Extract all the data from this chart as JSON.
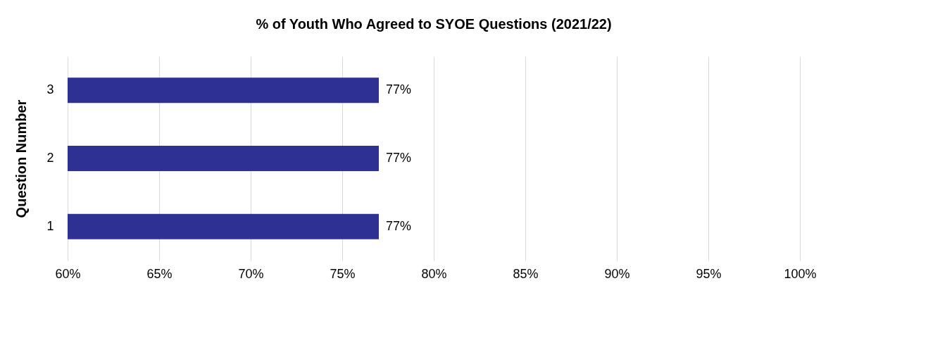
{
  "chart_data": {
    "type": "bar",
    "orientation": "horizontal",
    "title": "% of Youth Who Agreed to SYOE Questions (2021/22)",
    "ylabel": "Question Number",
    "categories": [
      "3",
      "2",
      "1"
    ],
    "values": [
      77,
      77,
      77
    ],
    "color": "#2e3192",
    "value_labels": [
      "77%",
      "77%",
      "77%"
    ],
    "xlim": [
      60,
      100
    ],
    "xticks": [
      {
        "value": 60,
        "label": "60%"
      },
      {
        "value": 65,
        "label": "65%"
      },
      {
        "value": 70,
        "label": "70%"
      },
      {
        "value": 75,
        "label": "75%"
      },
      {
        "value": 80,
        "label": "80%"
      },
      {
        "value": 85,
        "label": "85%"
      },
      {
        "value": 90,
        "label": "90%"
      },
      {
        "value": 95,
        "label": "95%"
      },
      {
        "value": 100,
        "label": "100%"
      }
    ],
    "grid": "x"
  }
}
